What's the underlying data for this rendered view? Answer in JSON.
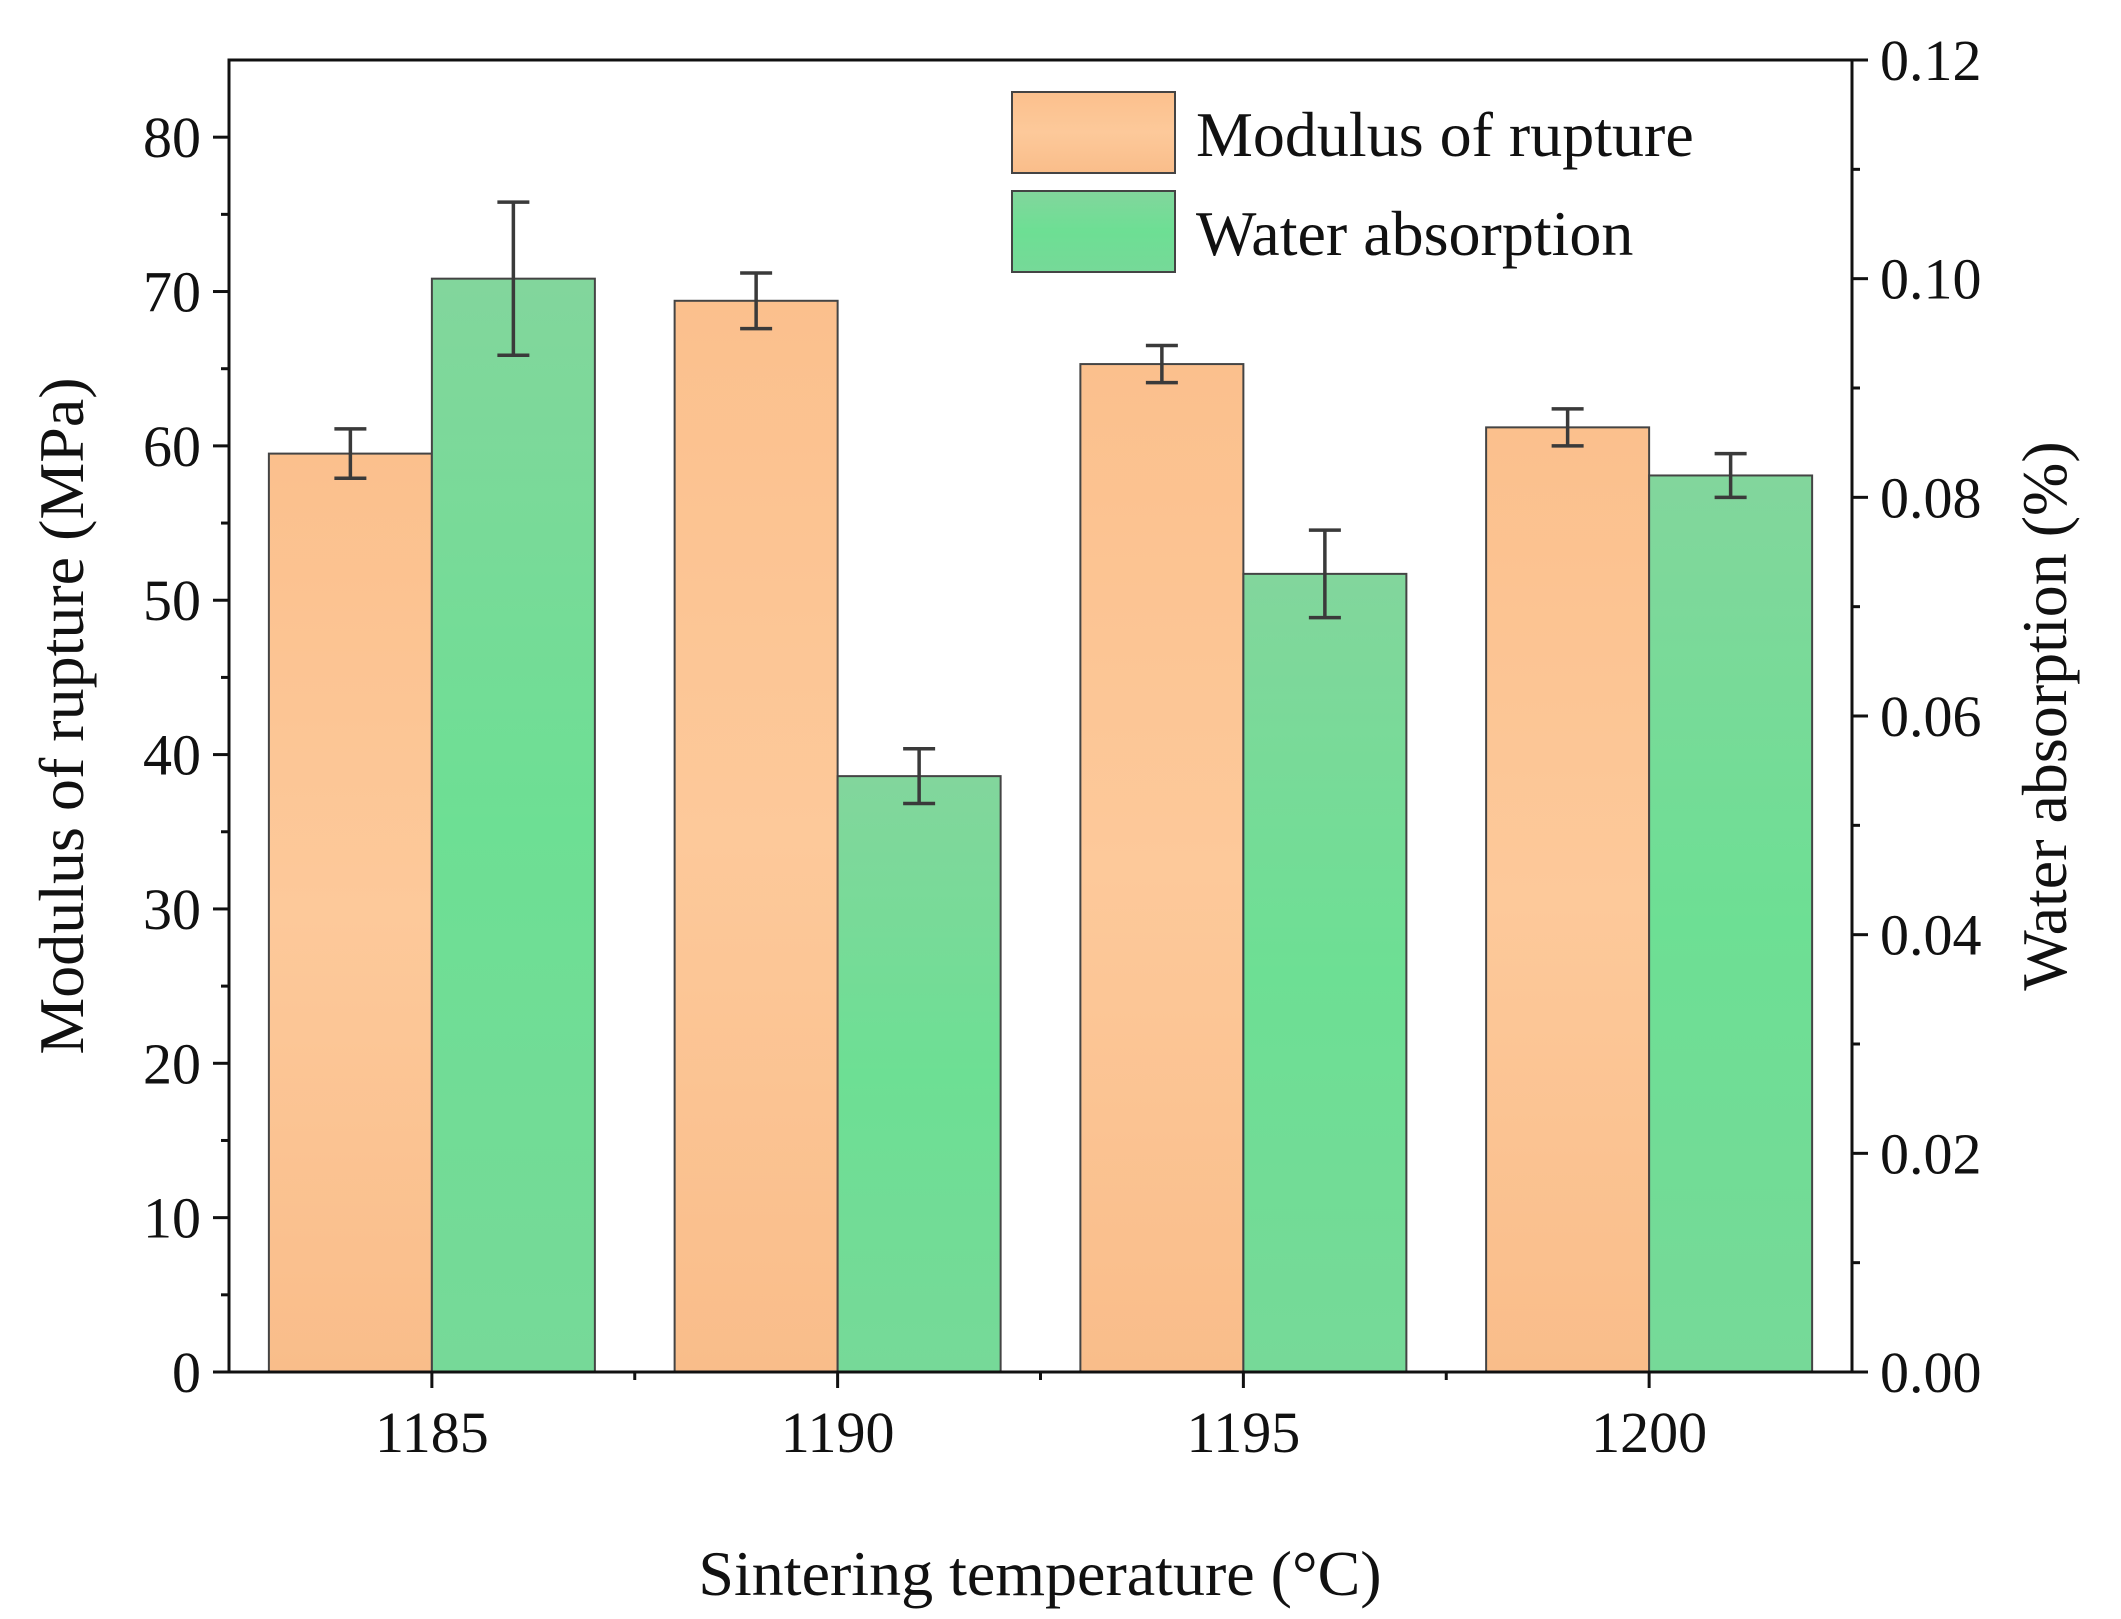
{
  "chart_data": {
    "type": "bar",
    "title": "",
    "xlabel": "Sintering temperature (°C)",
    "ylabel_left": "Modulus of rupture (MPa)",
    "ylabel_right": "Water absorption (%)",
    "categories": [
      "1185",
      "1190",
      "1195",
      "1200"
    ],
    "ylim_left": [
      0,
      85
    ],
    "ylim_right": [
      0,
      0.12
    ],
    "yticks_left": [
      "0",
      "10",
      "20",
      "30",
      "40",
      "50",
      "60",
      "70",
      "80"
    ],
    "yticks_right": [
      "0.00",
      "0.02",
      "0.04",
      "0.06",
      "0.08",
      "0.10",
      "0.12"
    ],
    "legend_position": "top-right",
    "series": [
      {
        "name": "Modulus of rupture",
        "axis": "left",
        "color": "#fbc08d",
        "values": [
          59.5,
          69.4,
          65.3,
          61.2
        ],
        "errors": [
          1.6,
          1.8,
          1.2,
          1.2
        ]
      },
      {
        "name": "Water absorption",
        "axis": "right",
        "color": "#6ddc96",
        "values": [
          0.1,
          0.0545,
          0.073,
          0.082
        ],
        "errors": [
          0.007,
          0.0025,
          0.004,
          0.002
        ]
      }
    ]
  }
}
